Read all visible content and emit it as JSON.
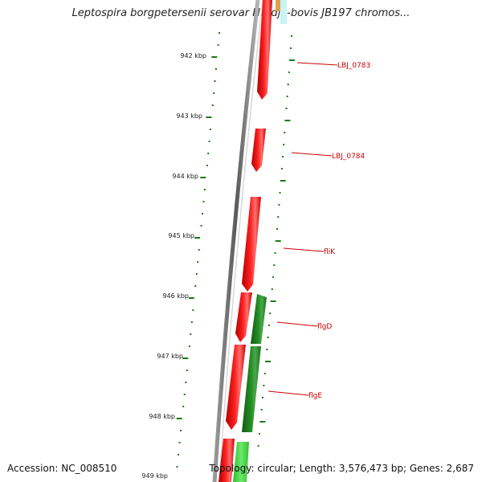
{
  "title": "Leptospira borgpetersenii serovar Hardjo-bovis JB197 chromos...",
  "accession": "Accession: NC_008510",
  "topology": "Topology: circular; Length: 3,576,473 bp; Genes: 2,687",
  "kbp_labels": [
    "942 kbp",
    "943 kbp",
    "944 kbp",
    "945 kbp",
    "946 kbp",
    "947 kbp",
    "948 kbp",
    "949 kbp"
  ],
  "gene_labels": [
    "LBJ_0783",
    "LBJ_0784",
    "fliK",
    "flgD",
    "flgE"
  ],
  "colors": {
    "forward_strand": "#ff0000",
    "reverse_strand": "#228b22",
    "ticks": "#1a7a1a",
    "label": "#cc0000",
    "backbone": "#808080"
  }
}
